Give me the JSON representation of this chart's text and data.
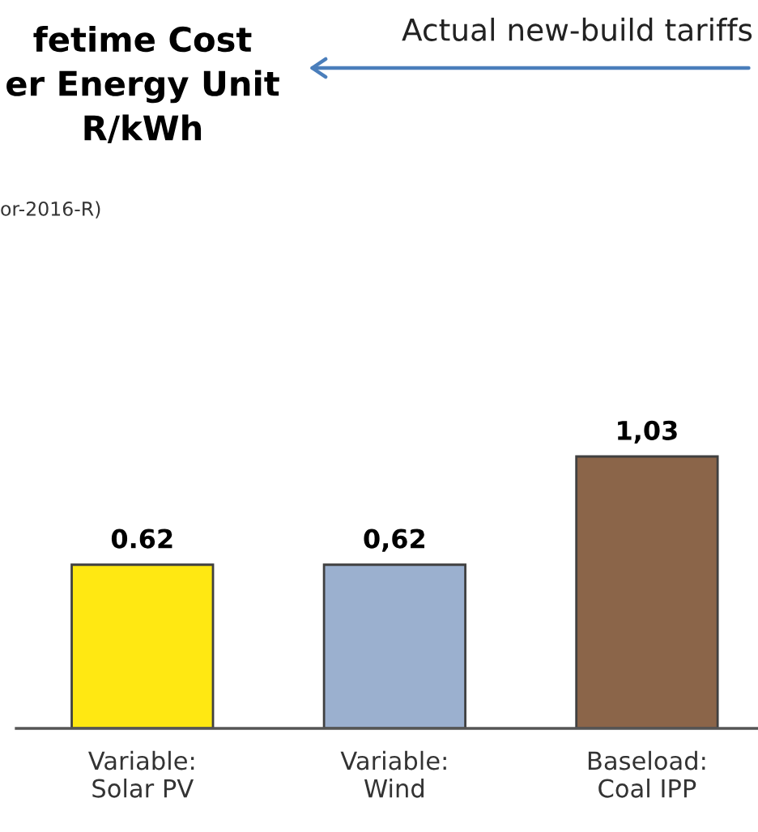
{
  "chart_data": {
    "type": "bar",
    "title": "fetime Cost\ner Energy Unit\nR/kWh",
    "subtitle": "or-2016-R)",
    "annotations": [
      "Actual new-build tariffs"
    ],
    "categories": [
      "Variable:\nSolar PV",
      "Variable:\nWind",
      "Baseload:\nCoal IPP"
    ],
    "values": [
      0.62,
      0.62,
      1.03
    ],
    "value_labels": [
      "0.62",
      "0,62",
      "1,03"
    ],
    "colors": [
      "#ffe812",
      "#9bb0cf",
      "#8b6549"
    ]
  }
}
